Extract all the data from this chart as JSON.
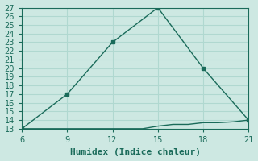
{
  "xlabel": "Humidex (Indice chaleur)",
  "ylabel": "",
  "line1_x": [
    6,
    9,
    12,
    15,
    18,
    21
  ],
  "line1_y": [
    13,
    17,
    23,
    27,
    20,
    14
  ],
  "line2_x": [
    6,
    7,
    8,
    9,
    10,
    11,
    12,
    13,
    14,
    15,
    16,
    17,
    18,
    19,
    20,
    21
  ],
  "line2_y": [
    13,
    13,
    13,
    13,
    13,
    13,
    13,
    13,
    13,
    13.3,
    13.5,
    13.5,
    13.7,
    13.7,
    13.8,
    14
  ],
  "marker_x": [
    6,
    9,
    12,
    15,
    18,
    21
  ],
  "marker_y": [
    13,
    17,
    23,
    27,
    20,
    14
  ],
  "line_color": "#1a6b5a",
  "marker_color": "#1a6b5a",
  "bg_color": "#cde8e2",
  "grid_color": "#b0d8d0",
  "xlim": [
    6,
    21
  ],
  "ylim": [
    13,
    27
  ],
  "xticks": [
    6,
    9,
    12,
    15,
    18,
    21
  ],
  "yticks": [
    13,
    14,
    15,
    16,
    17,
    18,
    19,
    20,
    21,
    22,
    23,
    24,
    25,
    26,
    27
  ],
  "tick_fontsize": 7,
  "xlabel_fontsize": 8,
  "marker_size": 3,
  "line_width": 1.0
}
